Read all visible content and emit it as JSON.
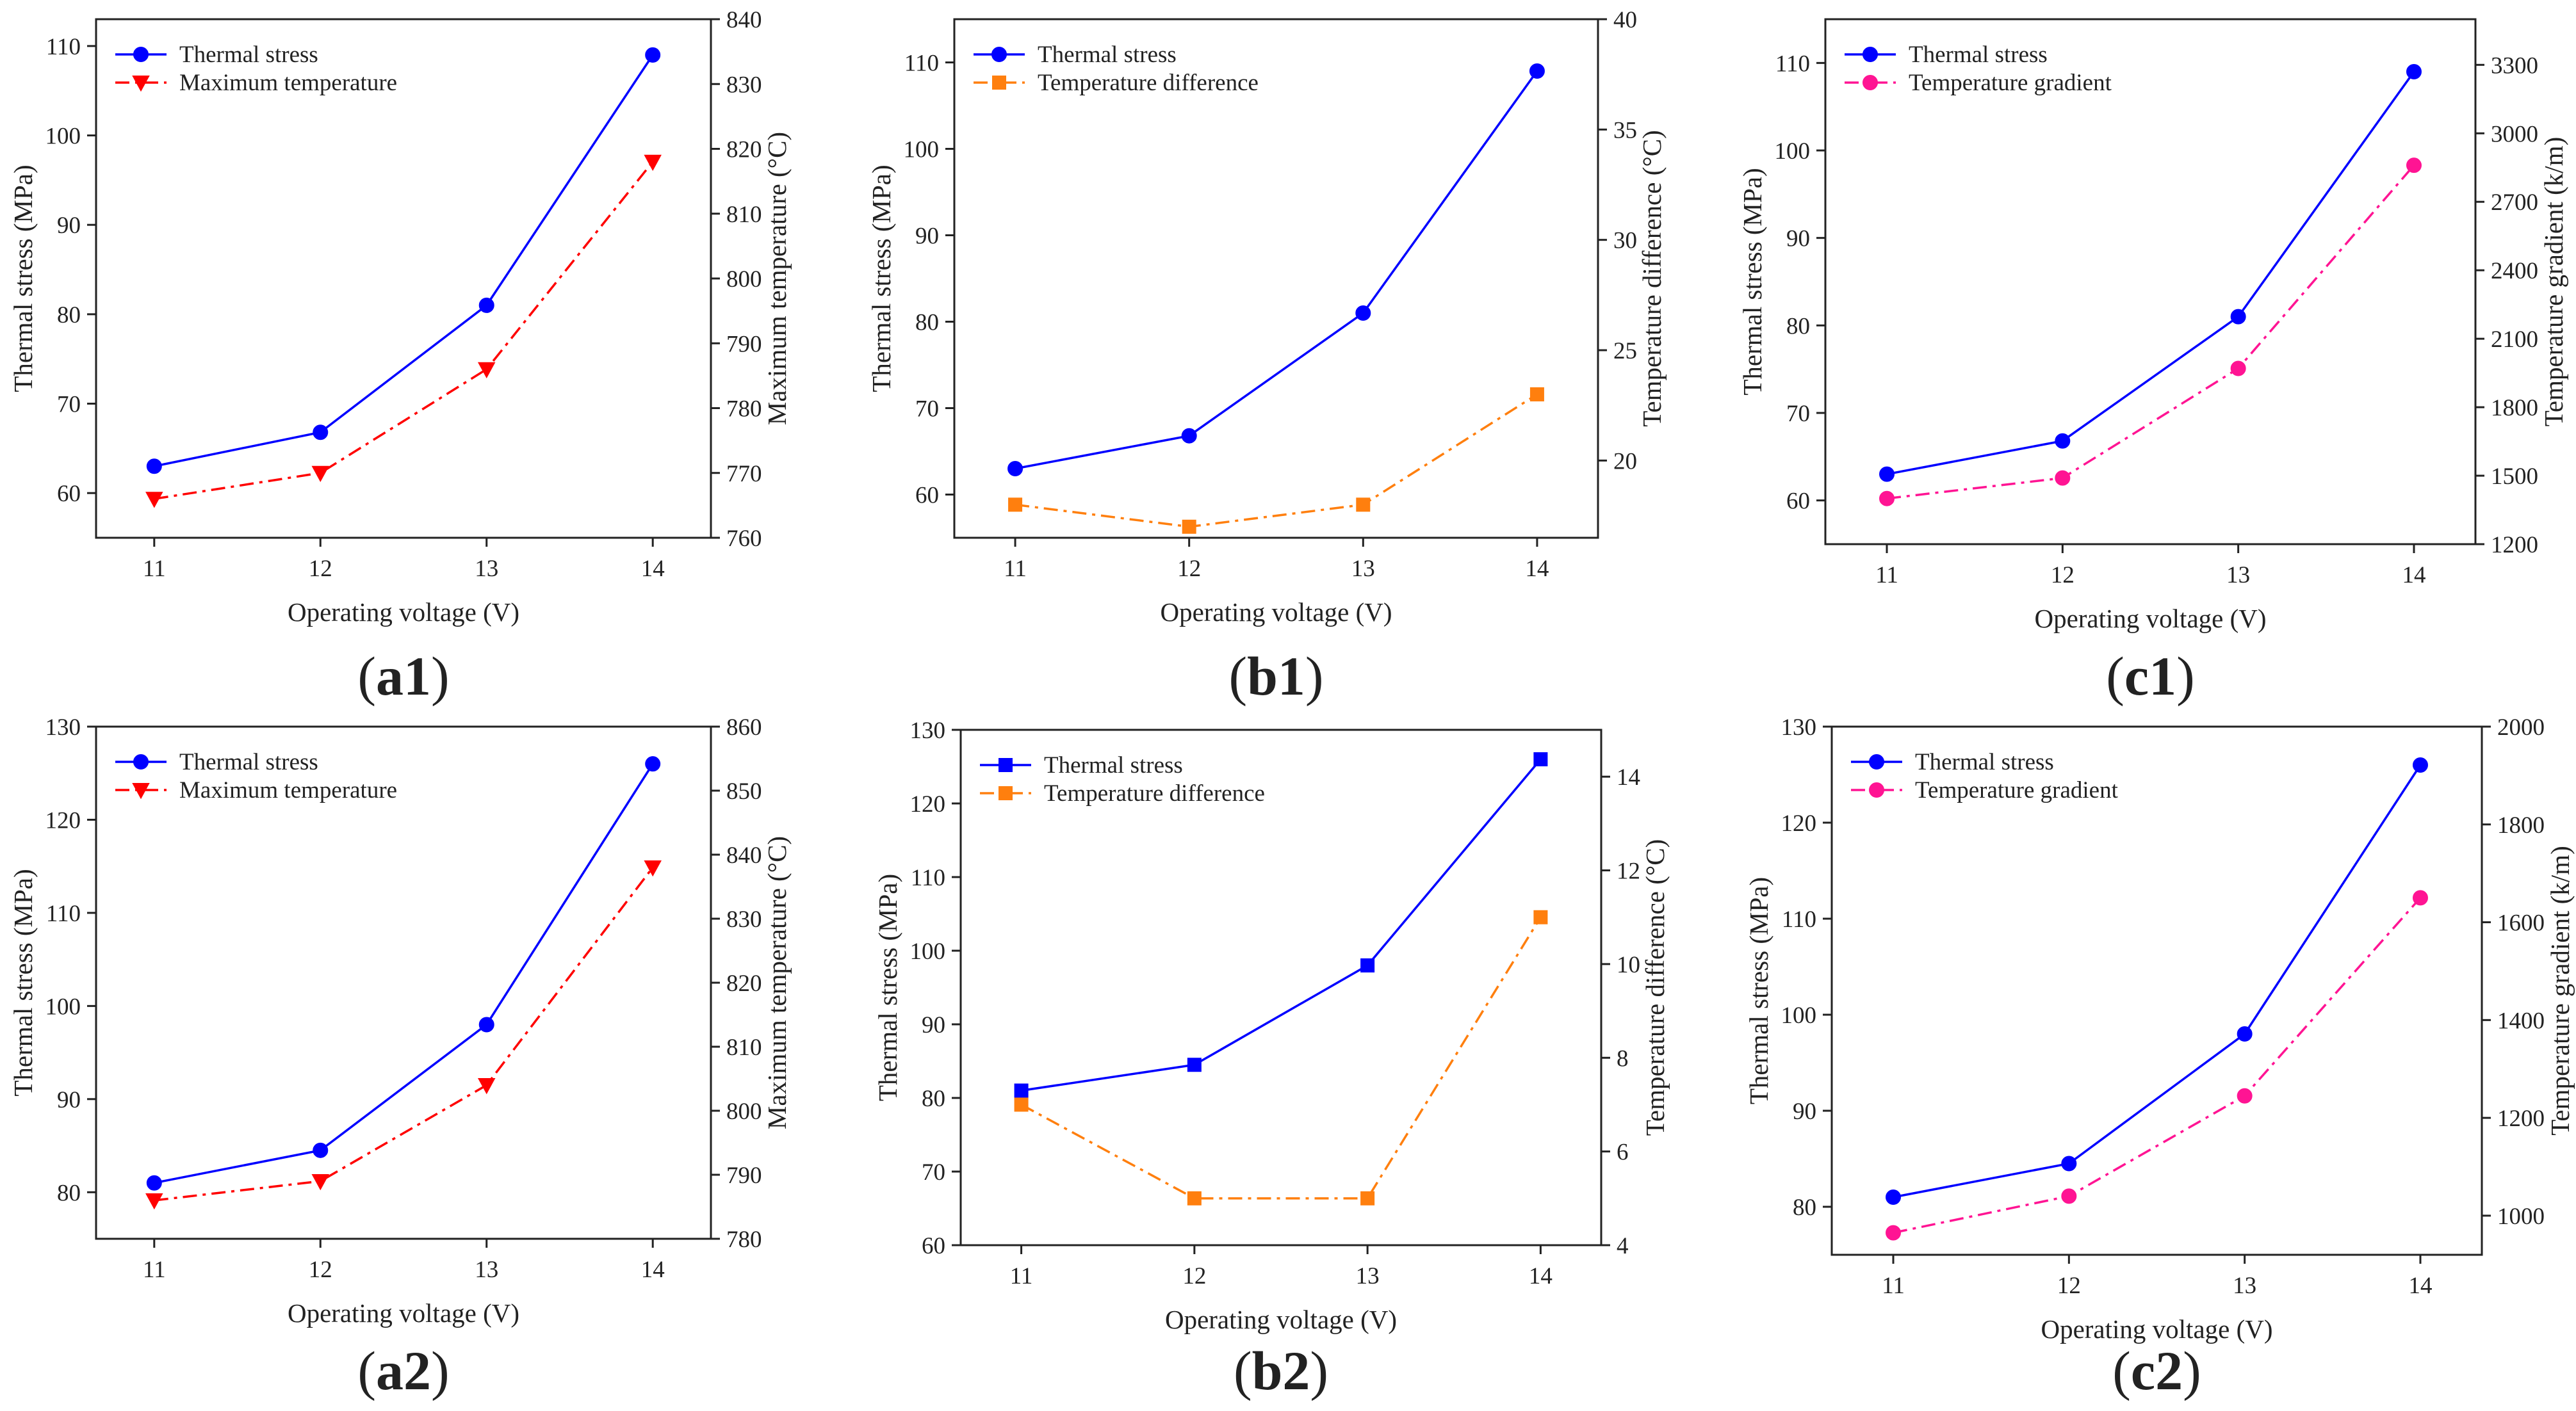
{
  "colors": {
    "stress": "#0000ff",
    "max_temperature": "#ff0000",
    "temperature_difference": "#ff7f0e",
    "temperature_gradient": "#ff1493",
    "axis": "#222222"
  },
  "chart_data": [
    {
      "id": "a1",
      "type": "line",
      "panel_label": "a1",
      "x": [
        11,
        12,
        13,
        14
      ],
      "xlabel": "Operating voltage (V)",
      "xticks": [
        "11",
        "12",
        "13",
        "14"
      ],
      "ylabel": "Thermal stress (MPa)",
      "ylim": [
        55,
        113
      ],
      "yticks": [
        "60",
        "70",
        "80",
        "90",
        "100",
        "110"
      ],
      "y2label": "Maximum temperature (°C)",
      "y2lim": [
        760,
        840
      ],
      "y2ticks": [
        "760",
        "770",
        "780",
        "790",
        "800",
        "810",
        "820",
        "830",
        "840"
      ],
      "grid": false,
      "legend_position": "top-left",
      "series": [
        {
          "name": "Thermal stress",
          "axis": "left",
          "values": [
            63.0,
            66.8,
            81.0,
            109.0
          ],
          "color": "#0000ff",
          "line_style": "solid",
          "marker": "circle"
        },
        {
          "name": "Maximum temperature",
          "axis": "right",
          "values": [
            766,
            770,
            786,
            818
          ],
          "color": "#ff0000",
          "line_style": "dash-dot",
          "marker": "triangle-down"
        }
      ]
    },
    {
      "id": "b1",
      "type": "line",
      "panel_label": "b1",
      "x": [
        11,
        12,
        13,
        14
      ],
      "xlabel": "Operating voltage (V)",
      "xticks": [
        "11",
        "12",
        "13",
        "14"
      ],
      "ylabel": "Thermal stress (MPa)",
      "ylim": [
        55,
        115
      ],
      "yticks": [
        "60",
        "70",
        "80",
        "90",
        "100",
        "110"
      ],
      "y2label": "Temperature difference (°C)",
      "y2lim": [
        16.5,
        40
      ],
      "y2ticks": [
        "20",
        "25",
        "30",
        "35",
        "40"
      ],
      "grid": false,
      "legend_position": "top-left",
      "series": [
        {
          "name": "Thermal stress",
          "axis": "left",
          "values": [
            63.0,
            66.8,
            81.0,
            109.0
          ],
          "color": "#0000ff",
          "line_style": "solid",
          "marker": "circle"
        },
        {
          "name": "Temperature difference",
          "axis": "right",
          "values": [
            18,
            17,
            18,
            23
          ],
          "color": "#ff7f0e",
          "line_style": "dash-dot",
          "marker": "square"
        }
      ]
    },
    {
      "id": "c1",
      "type": "line",
      "panel_label": "c1",
      "x": [
        11,
        12,
        13,
        14
      ],
      "xlabel": "Operating voltage (V)",
      "xticks": [
        "11",
        "12",
        "13",
        "14"
      ],
      "ylabel": "Thermal stress (MPa)",
      "ylim": [
        55,
        115
      ],
      "yticks": [
        "60",
        "70",
        "80",
        "90",
        "100",
        "110"
      ],
      "y2label": "Temperature gradient (k/m)",
      "y2lim": [
        1200,
        3500
      ],
      "y2ticks": [
        "1200",
        "1500",
        "1800",
        "2100",
        "2400",
        "2700",
        "3000",
        "3300"
      ],
      "grid": false,
      "legend_position": "top-left",
      "series": [
        {
          "name": "Thermal stress",
          "axis": "left",
          "values": [
            63.0,
            66.8,
            81.0,
            109.0
          ],
          "color": "#0000ff",
          "line_style": "solid",
          "marker": "circle"
        },
        {
          "name": "Temperature gradient",
          "axis": "right",
          "values": [
            1400,
            1490,
            1970,
            2860
          ],
          "color": "#ff1493",
          "line_style": "dash-dot",
          "marker": "circle"
        }
      ]
    },
    {
      "id": "a2",
      "type": "line",
      "panel_label": "a2",
      "x": [
        11,
        12,
        13,
        14
      ],
      "xlabel": "Operating voltage (V)",
      "xticks": [
        "11",
        "12",
        "13",
        "14"
      ],
      "ylabel": "Thermal stress (MPa)",
      "ylim": [
        75,
        130
      ],
      "yticks": [
        "80",
        "90",
        "100",
        "110",
        "120",
        "130"
      ],
      "y2label": "Maximum temperature (°C)",
      "y2lim": [
        780,
        860
      ],
      "y2ticks": [
        "780",
        "790",
        "800",
        "810",
        "820",
        "830",
        "840",
        "850",
        "860"
      ],
      "grid": false,
      "legend_position": "top-left",
      "series": [
        {
          "name": "Thermal stress",
          "axis": "left",
          "values": [
            81.0,
            84.5,
            98.0,
            126.0
          ],
          "color": "#0000ff",
          "line_style": "solid",
          "marker": "circle"
        },
        {
          "name": "Maximum temperature",
          "axis": "right",
          "values": [
            786,
            789,
            804,
            838
          ],
          "color": "#ff0000",
          "line_style": "dash-dot",
          "marker": "triangle-down"
        }
      ]
    },
    {
      "id": "b2",
      "type": "line",
      "panel_label": "b2",
      "x": [
        11,
        12,
        13,
        14
      ],
      "xlabel": "Operating voltage (V)",
      "xticks": [
        "11",
        "12",
        "13",
        "14"
      ],
      "ylabel": "Thermal stress (MPa)",
      "ylim": [
        60,
        130
      ],
      "yticks": [
        "60",
        "70",
        "80",
        "90",
        "100",
        "110",
        "120",
        "130"
      ],
      "y2label": "Temperature difference (°C)",
      "y2lim": [
        4,
        15
      ],
      "y2ticks": [
        "4",
        "6",
        "8",
        "10",
        "12",
        "14"
      ],
      "grid": false,
      "legend_position": "top-left",
      "series": [
        {
          "name": "Thermal stress",
          "axis": "left",
          "values": [
            81.0,
            84.5,
            98.0,
            126.0
          ],
          "color": "#0000ff",
          "line_style": "solid",
          "marker": "square"
        },
        {
          "name": "Temperature difference",
          "axis": "right",
          "values": [
            7,
            5,
            5,
            11
          ],
          "color": "#ff7f0e",
          "line_style": "dash-dot",
          "marker": "square"
        }
      ]
    },
    {
      "id": "c2",
      "type": "line",
      "panel_label": "c2",
      "x": [
        11,
        12,
        13,
        14
      ],
      "xlabel": "Operating voltage (V)",
      "xticks": [
        "11",
        "12",
        "13",
        "14"
      ],
      "ylabel": "Thermal stress (MPa)",
      "ylim": [
        75,
        130
      ],
      "yticks": [
        "80",
        "90",
        "100",
        "110",
        "120",
        "130"
      ],
      "y2label": "Temperature gradient (k/m)",
      "y2lim": [
        920,
        2000
      ],
      "y2ticks": [
        "1000",
        "1200",
        "1400",
        "1600",
        "1800",
        "2000"
      ],
      "grid": false,
      "legend_position": "top-left",
      "series": [
        {
          "name": "Thermal stress",
          "axis": "left",
          "values": [
            81.0,
            84.5,
            98.0,
            126.0
          ],
          "color": "#0000ff",
          "line_style": "solid",
          "marker": "circle"
        },
        {
          "name": "Temperature gradient",
          "axis": "right",
          "values": [
            965,
            1040,
            1245,
            1650
          ],
          "color": "#ff1493",
          "line_style": "dash-dot",
          "marker": "circle"
        }
      ]
    }
  ]
}
